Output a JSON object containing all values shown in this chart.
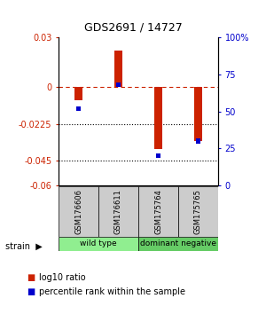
{
  "title": "GDS2691 / 14727",
  "samples": [
    "GSM176606",
    "GSM176611",
    "GSM175764",
    "GSM175765"
  ],
  "log10_ratio": [
    -0.008,
    0.022,
    -0.038,
    -0.033
  ],
  "percentile_rank": [
    52,
    68,
    20,
    30
  ],
  "ylim_left": [
    -0.06,
    0.03
  ],
  "ylim_right": [
    0,
    100
  ],
  "yticks_left": [
    0.03,
    0,
    -0.0225,
    -0.045,
    -0.06
  ],
  "ytick_labels_left": [
    "0.03",
    "0",
    "-0.0225",
    "-0.045",
    "-0.06"
  ],
  "yticks_right": [
    100,
    75,
    50,
    25,
    0
  ],
  "ytick_labels_right": [
    "100%",
    "75",
    "50",
    "25",
    "0"
  ],
  "groups": [
    {
      "label": "wild type",
      "samples": [
        0,
        1
      ],
      "color": "#90ee90"
    },
    {
      "label": "dominant negative",
      "samples": [
        2,
        3
      ],
      "color": "#66cc66"
    }
  ],
  "group_label_name": "strain",
  "bar_color_red": "#cc2200",
  "bar_color_blue": "#0000cc",
  "hline_color": "#cc2200",
  "dotted_lines": [
    -0.0225,
    -0.045
  ],
  "dotted_color": "#000000",
  "bar_width": 0.18,
  "legend_red_label": "log10 ratio",
  "legend_blue_label": "percentile rank within the sample",
  "sample_box_color": "#cccccc",
  "background_color": "#ffffff"
}
